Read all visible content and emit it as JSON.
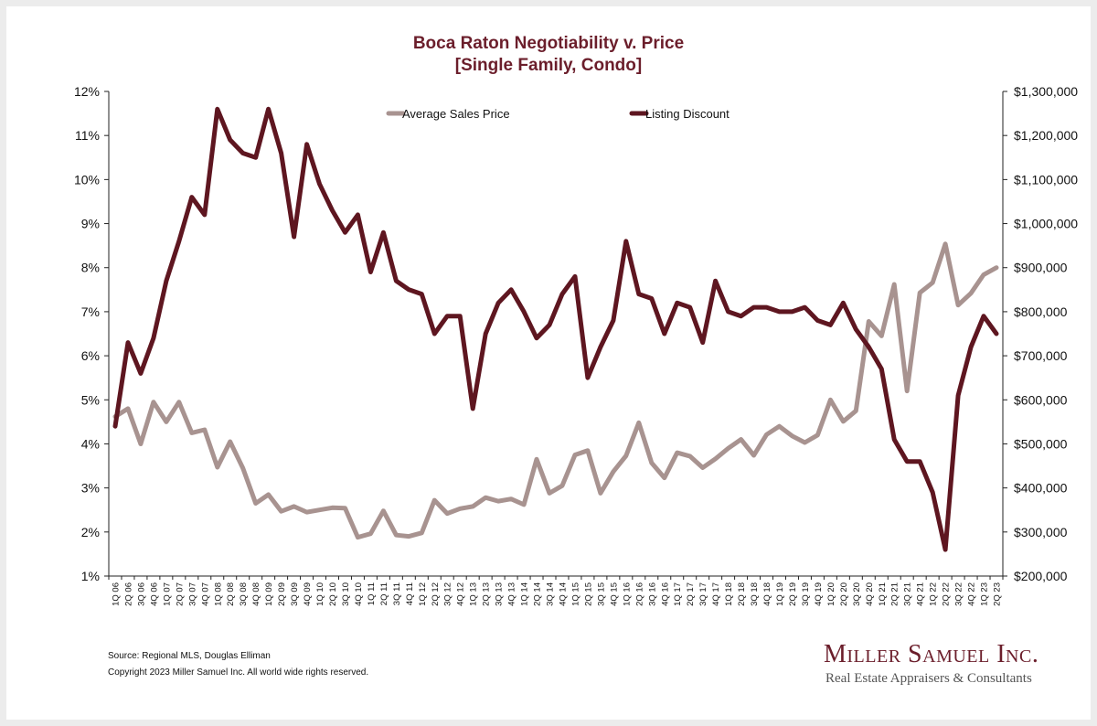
{
  "chart_data": {
    "type": "line",
    "title": "Boca Raton Negotiability v. Price",
    "subtitle": "[Single Family, Condo]",
    "xlabel": "",
    "ylabel_left": "",
    "ylabel_right": "",
    "legend_position": "top-center",
    "grid": false,
    "ylim_left": [
      1,
      12
    ],
    "ylim_right": [
      200000,
      1300000
    ],
    "left_ticks": [
      "1%",
      "2%",
      "3%",
      "4%",
      "5%",
      "6%",
      "7%",
      "8%",
      "9%",
      "10%",
      "11%",
      "12%"
    ],
    "right_ticks": [
      "$200,000",
      "$300,000",
      "$400,000",
      "$500,000",
      "$600,000",
      "$700,000",
      "$800,000",
      "$900,000",
      "$1,000,000",
      "$1,100,000",
      "$1,200,000",
      "$1,300,000"
    ],
    "categories": [
      "1Q 06",
      "2Q 06",
      "3Q 06",
      "4Q 06",
      "1Q 07",
      "2Q 07",
      "3Q 07",
      "4Q 07",
      "1Q 08",
      "2Q 08",
      "3Q 08",
      "4Q 08",
      "1Q 09",
      "2Q 09",
      "3Q 09",
      "4Q 09",
      "1Q 10",
      "2Q 10",
      "3Q 10",
      "4Q 10",
      "1Q 11",
      "2Q 11",
      "3Q 11",
      "4Q 11",
      "1Q 12",
      "2Q 12",
      "3Q 12",
      "4Q 12",
      "1Q 13",
      "2Q 13",
      "3Q 13",
      "4Q 13",
      "1Q 14",
      "2Q 14",
      "3Q 14",
      "4Q 14",
      "1Q 15",
      "2Q 15",
      "3Q 15",
      "4Q 15",
      "1Q 16",
      "2Q 16",
      "3Q 16",
      "4Q 16",
      "1Q 17",
      "2Q 17",
      "3Q 17",
      "4Q 17",
      "1Q 18",
      "2Q 18",
      "3Q 18",
      "4Q 18",
      "1Q 19",
      "2Q 19",
      "3Q 19",
      "4Q 19",
      "1Q 20",
      "2Q 20",
      "3Q 20",
      "4Q 20",
      "1Q 21",
      "2Q 21",
      "3Q 21",
      "4Q 21",
      "1Q 22",
      "2Q 22",
      "3Q 22",
      "4Q 22",
      "1Q 23",
      "2Q 23"
    ],
    "series": [
      {
        "name": "Average Sales Price",
        "axis": "right",
        "color": "#a89390",
        "values": [
          562000,
          580000,
          500000,
          595000,
          550000,
          595000,
          525000,
          532000,
          447000,
          505000,
          445000,
          365000,
          385000,
          347000,
          358000,
          345000,
          350000,
          355000,
          354000,
          288000,
          296000,
          348000,
          293000,
          290000,
          298000,
          372000,
          342000,
          353000,
          358000,
          378000,
          370000,
          375000,
          362000,
          465000,
          388000,
          405000,
          475000,
          485000,
          388000,
          437000,
          473000,
          548000,
          457000,
          423000,
          480000,
          472000,
          446000,
          466000,
          490000,
          510000,
          474000,
          521000,
          540000,
          518000,
          503000,
          520000,
          600000,
          551000,
          575000,
          778000,
          745000,
          862000,
          620000,
          843000,
          866000,
          954000,
          815000,
          842000,
          884000,
          900000
        ]
      },
      {
        "name": "Listing Discount",
        "axis": "left",
        "color": "#5e1620",
        "values": [
          4.4,
          6.3,
          5.6,
          6.4,
          7.7,
          8.6,
          9.6,
          9.2,
          11.6,
          10.9,
          10.6,
          10.5,
          11.6,
          10.6,
          8.7,
          10.8,
          9.9,
          9.3,
          8.8,
          9.2,
          7.9,
          8.8,
          7.7,
          7.5,
          7.4,
          6.5,
          6.9,
          6.9,
          4.8,
          6.5,
          7.2,
          7.5,
          7.0,
          6.4,
          6.7,
          7.4,
          7.8,
          5.5,
          6.2,
          6.8,
          8.6,
          7.4,
          7.3,
          6.5,
          7.2,
          7.1,
          6.3,
          7.7,
          7.0,
          6.9,
          7.1,
          7.1,
          7.0,
          7.0,
          7.1,
          6.8,
          6.7,
          7.2,
          6.6,
          6.2,
          5.7,
          4.1,
          3.6,
          3.6,
          2.9,
          1.6,
          5.1,
          6.2,
          6.9,
          6.5
        ]
      }
    ]
  },
  "footer": {
    "source": "Source: Regional MLS, Douglas Elliman",
    "copyright": "Copyright 2023 Miller Samuel Inc.  All world wide rights reserved.",
    "brand": "Miller Samuel Inc.",
    "tagline": "Real Estate Appraisers & Consultants"
  }
}
